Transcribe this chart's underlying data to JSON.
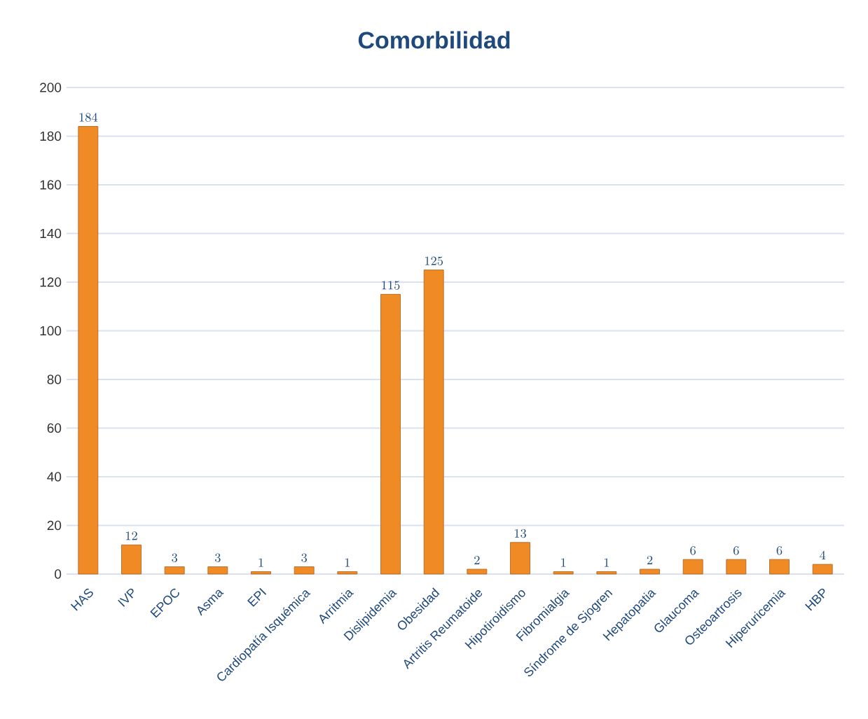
{
  "chart_data": {
    "type": "bar",
    "title": "Comorbilidad",
    "categories": [
      "HAS",
      "IVP",
      "EPOC",
      "Asma",
      "EPI",
      "Cardiopatía Isquémica",
      "Arritmia",
      "Dislipidemia",
      "Obesidad",
      "Artritis Reumatoide",
      "Hipotiroidismo",
      "Fibromialgia",
      "Síndrome de Sjogren",
      "Hepatopatia",
      "Glaucoma",
      "Osteoartrosis",
      "Hiperuricemia",
      "HBP"
    ],
    "values": [
      184,
      12,
      3,
      3,
      1,
      3,
      1,
      115,
      125,
      2,
      13,
      1,
      1,
      2,
      6,
      6,
      6,
      4
    ],
    "color": "#f08a24",
    "ylim": [
      0,
      200
    ],
    "yticks": [
      0,
      20,
      40,
      60,
      80,
      100,
      120,
      140,
      160,
      180,
      200
    ],
    "grid": "y",
    "data_labels": true
  }
}
